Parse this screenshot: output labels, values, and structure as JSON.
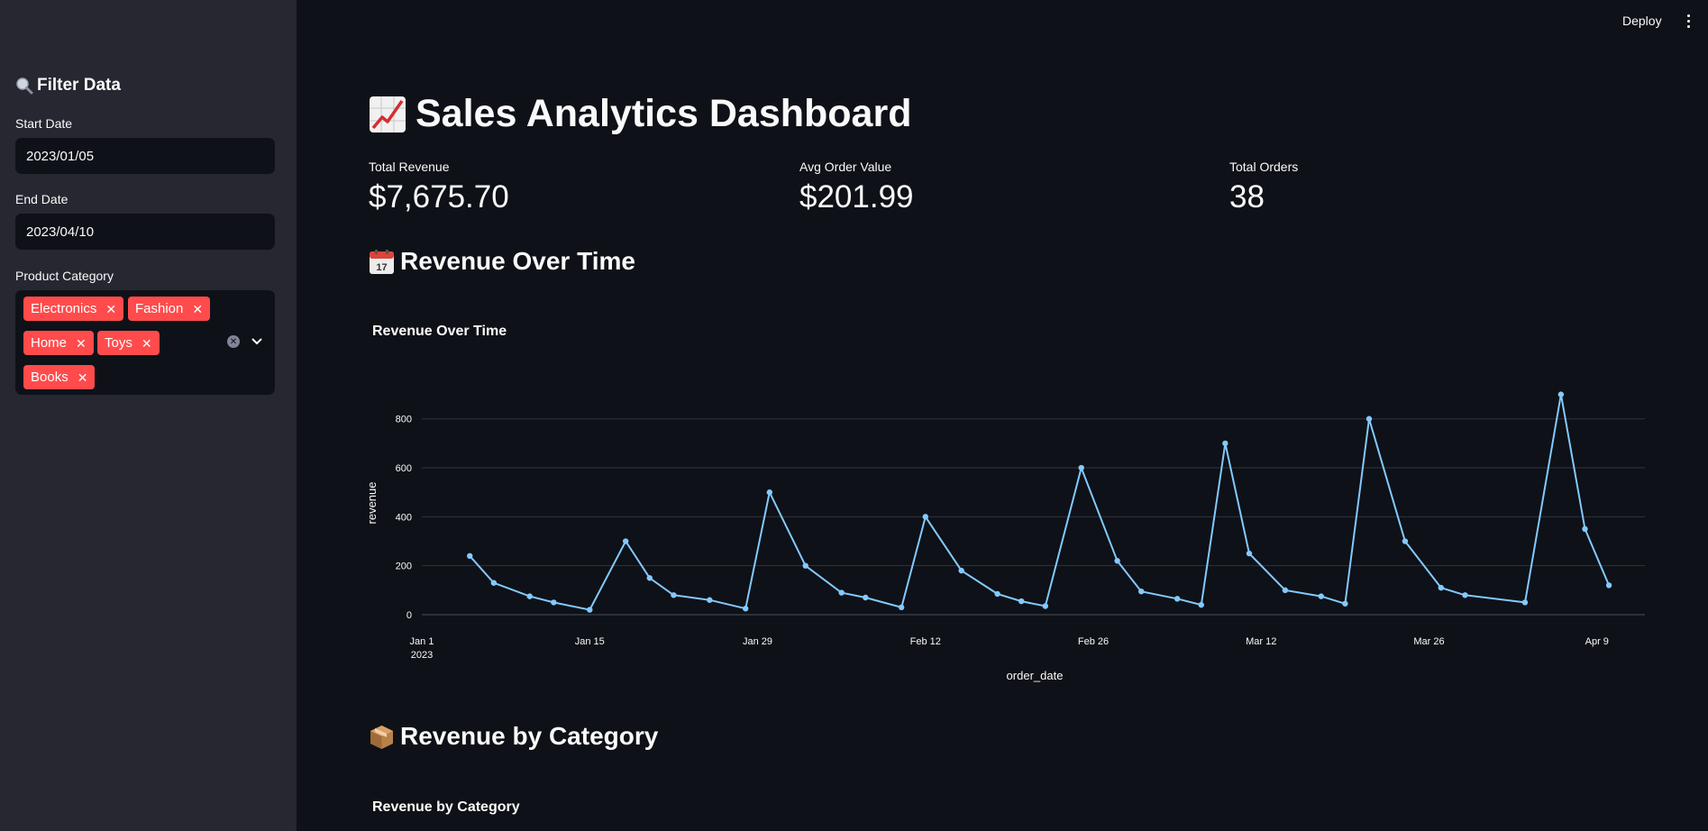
{
  "sidebar": {
    "title": "Filter Data",
    "title_icon": "magnifier-icon",
    "start_date_label": "Start Date",
    "start_date_value": "2023/01/05",
    "end_date_label": "End Date",
    "end_date_value": "2023/04/10",
    "category_label": "Product Category",
    "categories": [
      "Electronics",
      "Fashion",
      "Home",
      "Toys",
      "Books"
    ],
    "tag_color": "#ff4b4b"
  },
  "toolbar": {
    "deploy_label": "Deploy"
  },
  "header": {
    "title": "Sales Analytics Dashboard",
    "title_icon": "chart-increasing-icon"
  },
  "metrics": [
    {
      "label": "Total Revenue",
      "value": "$7,675.70"
    },
    {
      "label": "Avg Order Value",
      "value": "$201.99"
    },
    {
      "label": "Total Orders",
      "value": "38"
    }
  ],
  "sections": {
    "revenue_time": {
      "heading": "Revenue Over Time",
      "icon": "calendar-icon"
    },
    "revenue_category": {
      "heading": "Revenue by Category",
      "icon": "package-icon",
      "chart_title": "Revenue by Category"
    }
  },
  "chart_data": {
    "type": "line",
    "title": "Revenue Over Time",
    "xlabel": "order_date",
    "ylabel": "revenue",
    "ylim": [
      0,
      950
    ],
    "yticks": [
      0,
      200,
      400,
      600,
      800
    ],
    "xticks": [
      {
        "date": "2023-01-01",
        "label": "Jan 1",
        "sublabel": "2023"
      },
      {
        "date": "2023-01-15",
        "label": "Jan 15"
      },
      {
        "date": "2023-01-29",
        "label": "Jan 29"
      },
      {
        "date": "2023-02-12",
        "label": "Feb 12"
      },
      {
        "date": "2023-02-26",
        "label": "Feb 26"
      },
      {
        "date": "2023-03-12",
        "label": "Mar 12"
      },
      {
        "date": "2023-03-26",
        "label": "Mar 26"
      },
      {
        "date": "2023-04-09",
        "label": "Apr 9"
      }
    ],
    "xlim": [
      "2023-01-01",
      "2023-04-13"
    ],
    "grid": true,
    "line_color": "#83c9ff",
    "series": [
      {
        "x": [
          "2023-01-05",
          "2023-01-07",
          "2023-01-10",
          "2023-01-12",
          "2023-01-15",
          "2023-01-18",
          "2023-01-20",
          "2023-01-22",
          "2023-01-25",
          "2023-01-28",
          "2023-01-30",
          "2023-02-02",
          "2023-02-05",
          "2023-02-07",
          "2023-02-10",
          "2023-02-12",
          "2023-02-15",
          "2023-02-18",
          "2023-02-20",
          "2023-02-22",
          "2023-02-25",
          "2023-02-28",
          "2023-03-02",
          "2023-03-05",
          "2023-03-07",
          "2023-03-09",
          "2023-03-11",
          "2023-03-14",
          "2023-03-17",
          "2023-03-19",
          "2023-03-21",
          "2023-03-24",
          "2023-03-27",
          "2023-03-29",
          "2023-04-03",
          "2023-04-06",
          "2023-04-08",
          "2023-04-10"
        ],
        "y": [
          240,
          130,
          75,
          50,
          20,
          300,
          150,
          80,
          60,
          25,
          500,
          200,
          90,
          70,
          30,
          400,
          180,
          85,
          55,
          35,
          600,
          220,
          95,
          65,
          40,
          700,
          250,
          100,
          75,
          45,
          800,
          300,
          110,
          80,
          50,
          900,
          350,
          120
        ]
      }
    ]
  }
}
